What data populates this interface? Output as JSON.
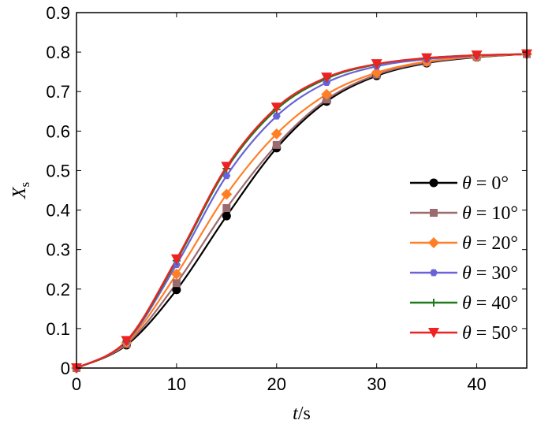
{
  "chart_data": {
    "type": "line",
    "title": "",
    "xlabel_main": "t",
    "xlabel_unit": "/s",
    "ylabel_main": "X",
    "ylabel_sub": "s",
    "xlim": [
      0,
      45
    ],
    "ylim": [
      0,
      0.9
    ],
    "xticks": [
      "0",
      "10",
      "20",
      "30",
      "40"
    ],
    "xtick_values": [
      0,
      10,
      20,
      30,
      40
    ],
    "yticks": [
      "0",
      "0.1",
      "0.2",
      "0.3",
      "0.4",
      "0.5",
      "0.6",
      "0.7",
      "0.8",
      "0.9"
    ],
    "ytick_values": [
      0,
      0.1,
      0.2,
      0.3,
      0.4,
      0.5,
      0.6,
      0.7,
      0.8,
      0.9
    ],
    "grid": false,
    "legend_position": "right",
    "x": [
      0,
      5,
      10,
      15,
      20,
      25,
      30,
      35,
      40,
      45
    ],
    "series": [
      {
        "name": "θ = 0°",
        "color": "#000000",
        "marker": "circle",
        "values": [
          0.0,
          0.058,
          0.198,
          0.385,
          0.557,
          0.675,
          0.74,
          0.772,
          0.787,
          0.795
        ]
      },
      {
        "name": "θ = 10°",
        "color": "#9c6b70",
        "marker": "square",
        "values": [
          0.0,
          0.061,
          0.215,
          0.405,
          0.565,
          0.68,
          0.743,
          0.774,
          0.788,
          0.795
        ]
      },
      {
        "name": "θ = 20°",
        "color": "#ff7f27",
        "marker": "diamond",
        "values": [
          0.0,
          0.064,
          0.238,
          0.44,
          0.593,
          0.693,
          0.748,
          0.776,
          0.789,
          0.795
        ]
      },
      {
        "name": "θ = 30°",
        "color": "#6a62d8",
        "marker": "hexagon",
        "values": [
          0.0,
          0.067,
          0.262,
          0.487,
          0.638,
          0.723,
          0.764,
          0.782,
          0.791,
          0.795
        ]
      },
      {
        "name": "θ = 40°",
        "color": "#1f7a1f",
        "marker": "plus",
        "values": [
          0.0,
          0.068,
          0.272,
          0.505,
          0.655,
          0.733,
          0.769,
          0.785,
          0.792,
          0.795
        ]
      },
      {
        "name": "θ = 50°",
        "color": "#ee2222",
        "marker": "triangle-down",
        "values": [
          0.0,
          0.069,
          0.276,
          0.51,
          0.66,
          0.736,
          0.77,
          0.785,
          0.792,
          0.795
        ]
      }
    ]
  }
}
